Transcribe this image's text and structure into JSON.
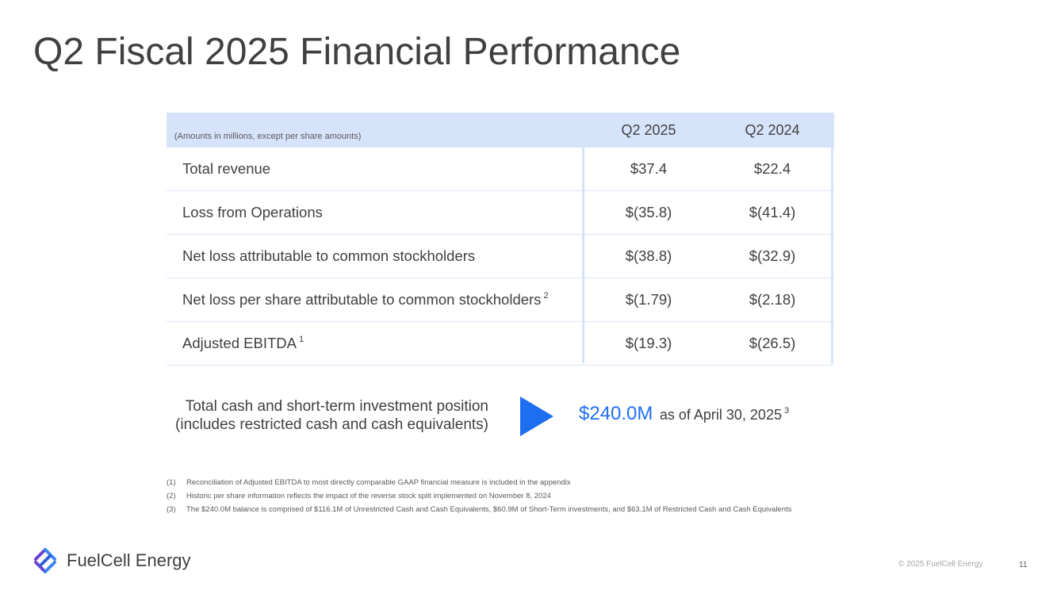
{
  "title": "Q2 Fiscal 2025 Financial Performance",
  "table": {
    "note": "(Amounts in millions, except per share amounts)",
    "columns": [
      "Q2 2025",
      "Q2 2024"
    ],
    "rows": [
      {
        "label": "Total revenue",
        "sup": "",
        "values": [
          "$37.4",
          "$22.4"
        ]
      },
      {
        "label": "Loss from Operations",
        "sup": "",
        "values": [
          "$(35.8)",
          "$(41.4)"
        ]
      },
      {
        "label": "Net loss attributable to common stockholders",
        "sup": "",
        "values": [
          "$(38.8)",
          "$(32.9)"
        ]
      },
      {
        "label": "Net loss per share attributable to common stockholders",
        "sup": "2",
        "values": [
          "$(1.79)",
          "$(2.18)"
        ]
      },
      {
        "label": "Adjusted EBITDA",
        "sup": "1",
        "values": [
          "$(19.3)",
          "$(26.5)"
        ]
      }
    ]
  },
  "cash": {
    "label_line1": "Total cash and short-term investment position",
    "label_line2": "(includes restricted cash and cash equivalents)",
    "amount": "$240.0M",
    "as_of": "as of April 30, 2025",
    "sup": "3"
  },
  "footnotes": [
    {
      "num": "(1)",
      "text": "Reconciliation of Adjusted EBITDA to most directly comparable GAAP financial measure is included in the appendix"
    },
    {
      "num": "(2)",
      "text": "Historic per share information reflects the impact of the reverse stock split implemented on November 8, 2024"
    },
    {
      "num": "(3)",
      "text": "The $240.0M balance is comprised of $116.1M of Unrestricted Cash and Cash Equivalents, $60.9M of Short-Term investments, and $63.1M of Restricted Cash and Cash Equivalents"
    }
  ],
  "footer": {
    "brand": "FuelCell Energy",
    "copyright": "© 2025 FuelCell Energy",
    "page_number": "11"
  },
  "colors": {
    "accent": "#1e6ef0",
    "table_header": "#d6e4fb",
    "text": "#404040"
  },
  "icons": {
    "arrow": "play-arrow-icon",
    "logo": "fuelcell-logo-icon"
  }
}
